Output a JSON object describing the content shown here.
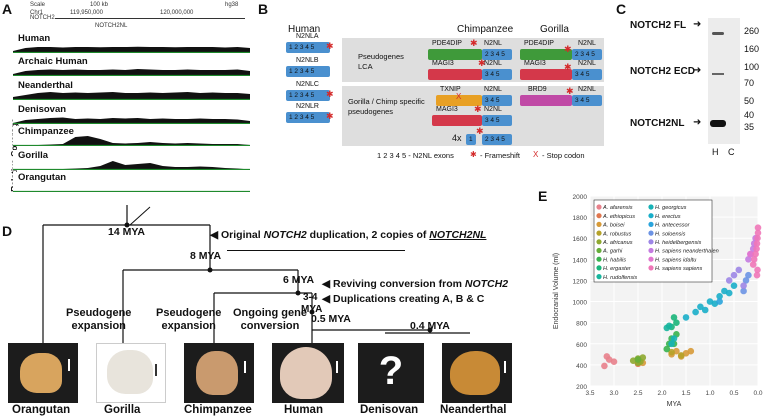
{
  "panel_a": {
    "label": "A",
    "header": {
      "scale_label": "Scale",
      "scale_value": "100 kb",
      "assembly": "hg38",
      "chrom": "Chr1",
      "pos1": "119,950,000",
      "pos2": "120,000,000",
      "gene1": "NOTCH2",
      "gene2": "NOTCH2NL"
    },
    "y_axis": "Relative Coverage",
    "tracks": [
      "Human",
      "Archaic Human",
      "Neanderthal",
      "Denisovan",
      "Chimpanzee",
      "Gorilla",
      "Orangutan"
    ]
  },
  "panel_b": {
    "label": "B",
    "col_human": "Human",
    "col_chimp": "Chimpanzee",
    "col_gorilla": "Gorilla",
    "human_genes": [
      "N2NLA",
      "N2NLB",
      "N2NLC",
      "N2NLR"
    ],
    "exons": "1 2 3 4 5",
    "exons_2345": "2 3 4 5",
    "exons_345": "3 4 5",
    "exons_1": "1",
    "row1_title": "Pseudogenes LCA",
    "row2_title": "Gorilla / Chimp specific  pseudogenes",
    "pde4dip": "PDE4DIP",
    "magi3": "MAGI3",
    "txnip": "TXNIP",
    "brd9": "BRD9",
    "n2nl": "N2NL",
    "fourx": "4x",
    "legend_exons": "1 2 3 4 5 - N2NL exons",
    "legend_frameshift": "- Frameshift",
    "legend_stop": "- Stop codon",
    "star": "✱",
    "cross": "X"
  },
  "panel_c": {
    "label": "C",
    "bands": [
      "NOTCH2 FL",
      "NOTCH2 ECD",
      "NOTCH2NL"
    ],
    "markers": [
      "260",
      "160",
      "100",
      "70",
      "50",
      "40",
      "35"
    ],
    "lanes": [
      "H",
      "C"
    ]
  },
  "panel_d": {
    "label": "D",
    "times": [
      "14 MYA",
      "8 MYA",
      "6 MYA",
      "3-4",
      "MYA",
      "0.5 MYA",
      "0.4 MYA"
    ],
    "notes": {
      "n1_pre": "Original ",
      "n1_gene": "NOTCH2",
      "n1_mid": " duplication, 2 copies of ",
      "n1_gene2": "NOTCH2NL",
      "n2_pre": "Reviving conversion from ",
      "n2_gene": "NOTCH2",
      "n3": "Duplications creating A, B & C"
    },
    "branch_labels": {
      "pseudo1a": "Pseudogene",
      "pseudo1b": "expansion",
      "pseudo2a": "Pseudogene",
      "pseudo2b": "expansion",
      "ongoing_a": "Ongoing gene",
      "ongoing_b": "conversion"
    },
    "species": [
      "Orangutan",
      "Gorilla",
      "Chimpanzee",
      "Human",
      "Denisovan",
      "Neanderthal"
    ],
    "unknown": "?"
  },
  "panel_e": {
    "label": "E",
    "legend": [
      {
        "name": "A. afarensis",
        "color": "#e8818c"
      },
      {
        "name": "A. ethiopicus",
        "color": "#e0774f"
      },
      {
        "name": "A. boisei",
        "color": "#d79a38"
      },
      {
        "name": "A. robustus",
        "color": "#b5a229"
      },
      {
        "name": "A. africanus",
        "color": "#8ea82f"
      },
      {
        "name": "A. garhi",
        "color": "#66ae3a"
      },
      {
        "name": "H. habilis",
        "color": "#39b24e"
      },
      {
        "name": "H. ergaster",
        "color": "#19b57a"
      },
      {
        "name": "H. rudolfensis",
        "color": "#17b59d"
      },
      {
        "name": "H. georgicus",
        "color": "#17b2b6"
      },
      {
        "name": "H. erectus",
        "color": "#19aec9"
      },
      {
        "name": "H. antecessor",
        "color": "#2aa4dc"
      },
      {
        "name": "H. soloensis",
        "color": "#6c93e4"
      },
      {
        "name": "H. heidelbergensis",
        "color": "#9d86e6"
      },
      {
        "name": "H. sapiens neanderthalen",
        "color": "#c47be0"
      },
      {
        "name": "H. sapiens idaltu",
        "color": "#e276d0"
      },
      {
        "name": "H. sapiens sapiens",
        "color": "#ef77b8"
      }
    ]
  },
  "chart_data": {
    "type": "scatter",
    "title": "",
    "xlabel": "MYA",
    "ylabel": "Endocranial Volume (ml)",
    "xlim": [
      3.5,
      0.0
    ],
    "ylim": [
      200,
      2000
    ],
    "xticks": [
      "3.5",
      "3.0",
      "2.5",
      "2.0",
      "1.5",
      "1.0",
      "0.5",
      "0.0"
    ],
    "yticks": [
      "200",
      "400",
      "600",
      "800",
      "1000",
      "1200",
      "1400",
      "1600",
      "1800",
      "2000"
    ],
    "series": [
      {
        "name": "A. afarensis",
        "x": [
          3.2,
          3.1,
          3.0,
          3.15
        ],
        "y": [
          390,
          450,
          430,
          480
        ]
      },
      {
        "name": "A. ethiopicus",
        "x": [
          2.5
        ],
        "y": [
          410
        ]
      },
      {
        "name": "A. boisei",
        "x": [
          2.4,
          1.8,
          1.7,
          1.6,
          1.5,
          1.4
        ],
        "y": [
          420,
          500,
          530,
          480,
          510,
          530
        ]
      },
      {
        "name": "A. robustus",
        "x": [
          1.8,
          1.6
        ],
        "y": [
          520,
          490
        ]
      },
      {
        "name": "A. africanus",
        "x": [
          2.6,
          2.5,
          2.45,
          2.4,
          2.5
        ],
        "y": [
          440,
          460,
          430,
          470,
          420
        ]
      },
      {
        "name": "A. garhi",
        "x": [
          2.5
        ],
        "y": [
          450
        ]
      },
      {
        "name": "H. habilis",
        "x": [
          1.9,
          1.85,
          1.8,
          1.7,
          1.75
        ],
        "y": [
          550,
          600,
          650,
          690,
          600
        ]
      },
      {
        "name": "H. ergaster",
        "x": [
          1.8,
          1.75,
          1.7
        ],
        "y": [
          760,
          850,
          800
        ]
      },
      {
        "name": "H. rudolfensis",
        "x": [
          1.9,
          1.85
        ],
        "y": [
          750,
          770
        ]
      },
      {
        "name": "H. georgicus",
        "x": [
          1.8,
          1.75
        ],
        "y": [
          600,
          650
        ]
      },
      {
        "name": "H. erectus",
        "x": [
          1.5,
          1.3,
          1.2,
          1.0,
          0.9,
          0.8,
          0.7,
          1.1,
          0.6,
          0.5
        ],
        "y": [
          850,
          900,
          950,
          1000,
          980,
          1050,
          1100,
          920,
          1080,
          1150
        ]
      },
      {
        "name": "H. antecessor",
        "x": [
          0.8
        ],
        "y": [
          1000
        ]
      },
      {
        "name": "H. soloensis",
        "x": [
          0.3,
          0.25,
          0.2
        ],
        "y": [
          1100,
          1200,
          1250
        ]
      },
      {
        "name": "H. heidelbergensis",
        "x": [
          0.6,
          0.5,
          0.4,
          0.3
        ],
        "y": [
          1200,
          1250,
          1300,
          1150
        ]
      },
      {
        "name": "H. sapiens neanderthalen",
        "x": [
          0.2,
          0.15,
          0.1,
          0.08,
          0.05
        ],
        "y": [
          1400,
          1450,
          1500,
          1550,
          1600
        ]
      },
      {
        "name": "H. sapiens idaltu",
        "x": [
          0.16
        ],
        "y": [
          1450
        ]
      },
      {
        "name": "H. sapiens sapiens",
        "x": [
          0.1,
          0.08,
          0.05,
          0.03,
          0.02,
          0.01,
          0.0,
          0.0,
          0.01,
          0.02
        ],
        "y": [
          1350,
          1400,
          1450,
          1500,
          1550,
          1600,
          1650,
          1700,
          1300,
          1250
        ]
      }
    ]
  }
}
